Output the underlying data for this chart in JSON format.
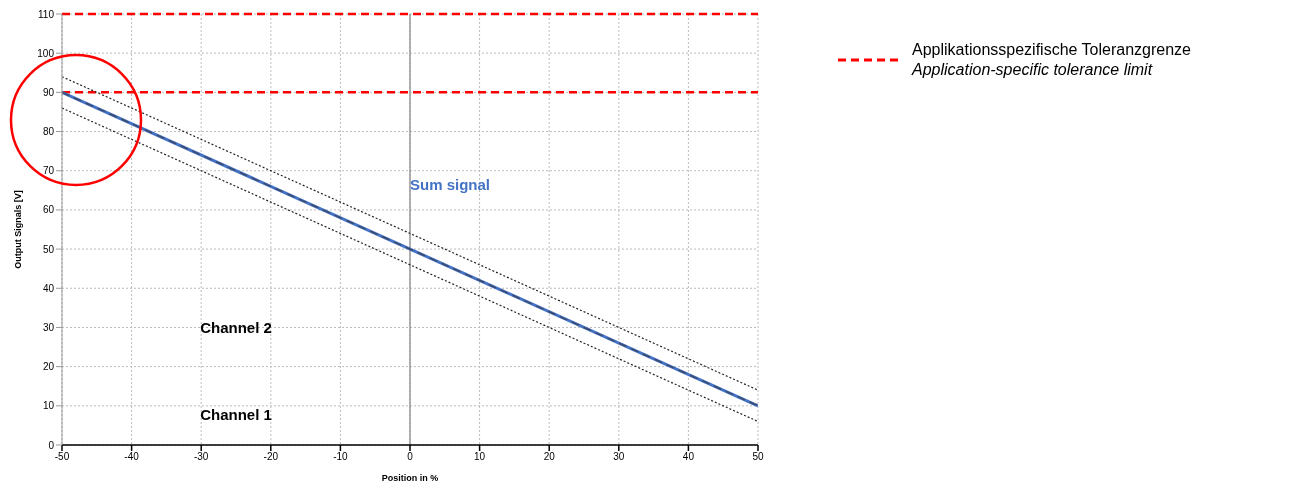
{
  "chart_data": {
    "type": "line",
    "xlabel": "Position in %",
    "ylabel": "Output Signals [V]",
    "xlim": [
      -50,
      50
    ],
    "xticks": [
      -50,
      -40,
      -30,
      -20,
      -10,
      0,
      10,
      20,
      30,
      40,
      50
    ],
    "ylim": [
      0,
      110
    ],
    "yticks": [
      0,
      10,
      20,
      30,
      40,
      50,
      60,
      70,
      80,
      90,
      100,
      110
    ],
    "grid": true,
    "legend": "right",
    "marker": "none",
    "x": [
      -50,
      50
    ],
    "series": [
      {
        "name": "Sum signal",
        "color": "#4472c4",
        "values": [
          90,
          10
        ],
        "line_style": "solid"
      },
      {
        "color": "#3b4a6b",
        "values": [
          90,
          10
        ],
        "line_style": "dashed"
      },
      {
        "color": "#222222",
        "values": [
          94,
          14
        ],
        "line_style": "dotted"
      },
      {
        "color": "#222222",
        "values": [
          86,
          6
        ],
        "line_style": "dotted"
      }
    ],
    "ref_lines": [
      {
        "axis": "y",
        "value": 110,
        "label": "Applikationsspezifische Toleranzgrenze\nApplication-specific tolerance limit",
        "color": "#ff0000",
        "line_style": "dashed"
      },
      {
        "axis": "y",
        "value": 90,
        "color": "#ff0000",
        "line_style": "dashed"
      },
      {
        "axis": "x",
        "value": 0,
        "color": "#999999",
        "line_style": "solid"
      }
    ],
    "annotations": [
      "Channel 2",
      "Channel 1"
    ]
  }
}
